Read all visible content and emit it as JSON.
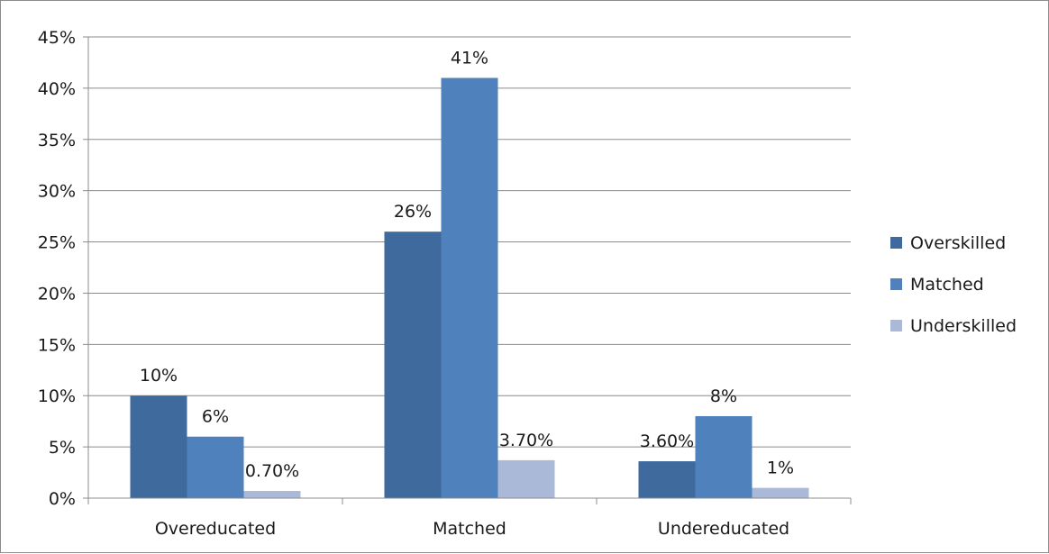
{
  "chart_data": {
    "type": "bar",
    "title": "",
    "xlabel": "",
    "ylabel": "",
    "categories": [
      "Overeducated",
      "Matched",
      "Undereducated"
    ],
    "series": [
      {
        "name": "Overskilled",
        "values": [
          10,
          26,
          3.6
        ],
        "labels": [
          "10%",
          "26%",
          "3.60%"
        ],
        "color": "#3e6a9e"
      },
      {
        "name": "Matched",
        "values": [
          6,
          41,
          8
        ],
        "labels": [
          "6%",
          "41%",
          "8%"
        ],
        "color": "#4f81bd"
      },
      {
        "name": "Underskilled",
        "values": [
          0.7,
          3.7,
          1
        ],
        "labels": [
          "0.70%",
          "3.70%",
          "1%"
        ],
        "color": "#aab9d7"
      }
    ],
    "ylim": [
      0,
      45
    ],
    "yticks": [
      0,
      5,
      10,
      15,
      20,
      25,
      30,
      35,
      40,
      45
    ],
    "ytick_labels": [
      "0%",
      "5%",
      "10%",
      "15%",
      "20%",
      "25%",
      "30%",
      "35%",
      "40%",
      "45%"
    ],
    "grid": true,
    "gridline_color": "#8c8c8c",
    "legend": "right"
  }
}
